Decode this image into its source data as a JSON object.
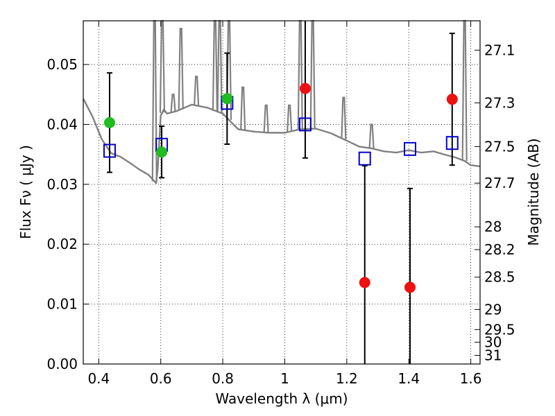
{
  "chart_data": {
    "type": "scatter",
    "xlabel": "Wavelength  λ (μm)",
    "ylabel": "Flux  Fν  ( μJy )",
    "ylabel_right": "Magnitude (AB)",
    "xlim": [
      0.35,
      1.63
    ],
    "ylim": [
      0.0,
      0.0573
    ],
    "grid": true,
    "x_ticks": [
      {
        "value": 0.4,
        "label": "0.4"
      },
      {
        "value": 0.6,
        "label": "0.6"
      },
      {
        "value": 0.8,
        "label": "0.8"
      },
      {
        "value": 1.0,
        "label": "1"
      },
      {
        "value": 1.2,
        "label": "1.2"
      },
      {
        "value": 1.4,
        "label": "1.4"
      },
      {
        "value": 1.6,
        "label": "1.6"
      }
    ],
    "y_ticks": [
      {
        "value": 0.0,
        "label": "0.00"
      },
      {
        "value": 0.01,
        "label": "0.01"
      },
      {
        "value": 0.02,
        "label": "0.02"
      },
      {
        "value": 0.03,
        "label": "0.03"
      },
      {
        "value": 0.04,
        "label": "0.04"
      },
      {
        "value": 0.05,
        "label": "0.05"
      }
    ],
    "right_ticks": [
      {
        "label": "27.1",
        "flux": 0.0524
      },
      {
        "label": "27.3",
        "flux": 0.0436
      },
      {
        "label": "27.5",
        "flux": 0.0363
      },
      {
        "label": "27.7",
        "flux": 0.0302
      },
      {
        "label": "28",
        "flux": 0.0229
      },
      {
        "label": "28.2",
        "flux": 0.0191
      },
      {
        "label": "28.5",
        "flux": 0.0145
      },
      {
        "label": "29",
        "flux": 0.0091
      },
      {
        "label": "29.5",
        "flux": 0.00575
      },
      {
        "label": "30",
        "flux": 0.00363
      },
      {
        "label": "31",
        "flux": 0.00145
      }
    ],
    "series": [
      {
        "role": "observed",
        "x": [
          0.435,
          0.603,
          0.814,
          1.066,
          1.258,
          1.404,
          1.54
        ],
        "y": [
          0.0403,
          0.0354,
          0.0443,
          0.046,
          0.0136,
          0.0128,
          0.0442
        ],
        "yerr_low": [
          0.0083,
          0.0043,
          0.0076,
          0.0116,
          0.0136,
          0.0128,
          0.011
        ],
        "yerr_high": [
          0.0083,
          0.0043,
          0.0076,
          0.0116,
          0.0195,
          0.0165,
          0.011
        ],
        "colors": [
          "#22bb22",
          "#22bb22",
          "#22bb22",
          "#ee1111",
          "#ee1111",
          "#ee1111",
          "#ee1111"
        ]
      },
      {
        "role": "model",
        "marker": "open-square",
        "color": "#0000cc",
        "x": [
          0.435,
          0.603,
          0.814,
          1.066,
          1.258,
          1.404,
          1.54
        ],
        "y": [
          0.0356,
          0.0366,
          0.0436,
          0.04,
          0.0343,
          0.0359,
          0.0369
        ]
      },
      {
        "role": "template",
        "color": "#808080",
        "x": [
          0.35,
          0.38,
          0.41,
          0.44,
          0.47,
          0.5,
          0.53,
          0.56,
          0.585,
          0.59,
          0.6,
          0.61,
          0.62,
          0.65,
          0.7,
          0.75,
          0.8,
          0.85,
          0.9,
          0.95,
          1.0,
          1.05,
          1.1,
          1.15,
          1.2,
          1.24,
          1.28,
          1.32,
          1.36,
          1.4,
          1.44,
          1.48,
          1.52,
          1.55,
          1.58,
          1.6,
          1.63
        ],
        "y": [
          0.0443,
          0.0413,
          0.0375,
          0.0352,
          0.0346,
          0.0336,
          0.0325,
          0.0316,
          0.0302,
          0.0325,
          0.0415,
          0.0425,
          0.0418,
          0.0422,
          0.0433,
          0.0428,
          0.0418,
          0.0392,
          0.0388,
          0.0386,
          0.0386,
          0.0392,
          0.0393,
          0.0385,
          0.0373,
          0.0363,
          0.036,
          0.0355,
          0.0353,
          0.0357,
          0.0353,
          0.0355,
          0.0349,
          0.0345,
          0.0339,
          0.0332,
          0.033
        ]
      }
    ],
    "spikes": [
      {
        "x": 0.58,
        "y": 0.0573
      },
      {
        "x": 0.605,
        "y": 0.0573
      },
      {
        "x": 0.64,
        "y": 0.045
      },
      {
        "x": 0.665,
        "y": 0.056
      },
      {
        "x": 0.715,
        "y": 0.048
      },
      {
        "x": 0.775,
        "y": 0.0573
      },
      {
        "x": 0.79,
        "y": 0.0573
      },
      {
        "x": 0.82,
        "y": 0.0573
      },
      {
        "x": 0.865,
        "y": 0.0462
      },
      {
        "x": 0.94,
        "y": 0.0432
      },
      {
        "x": 1.015,
        "y": 0.0432
      },
      {
        "x": 1.05,
        "y": 0.0573
      },
      {
        "x": 1.09,
        "y": 0.0573
      },
      {
        "x": 1.19,
        "y": 0.0445
      },
      {
        "x": 1.28,
        "y": 0.04
      },
      {
        "x": 1.58,
        "y": 0.0573
      }
    ]
  }
}
